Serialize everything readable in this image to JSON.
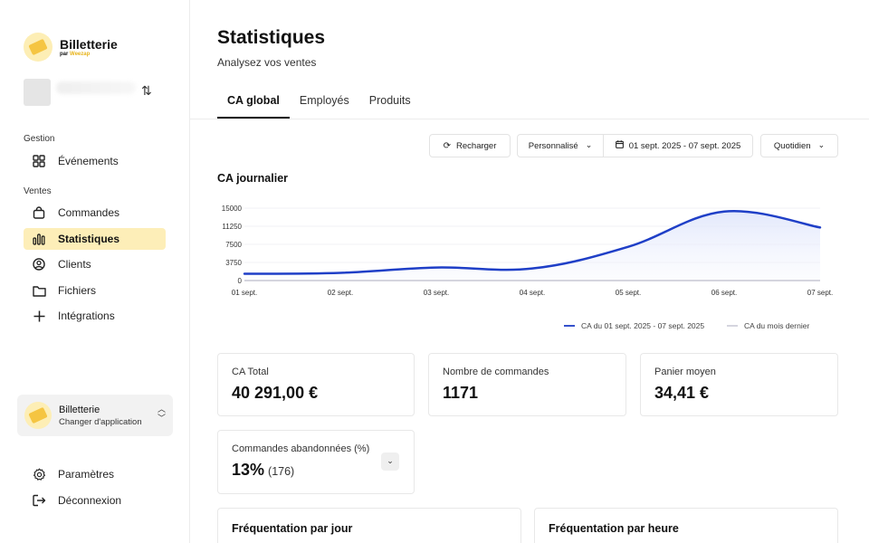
{
  "brand": {
    "name": "Billetterie",
    "by": "par",
    "company": "Weezap"
  },
  "sidebar": {
    "sections": [
      {
        "label": "Gestion"
      },
      {
        "label": "Ventes"
      }
    ],
    "items": [
      {
        "label": "Événements",
        "icon": "grid-icon"
      },
      {
        "label": "Commandes",
        "icon": "shopping-bag-icon"
      },
      {
        "label": "Statistiques",
        "icon": "bar-chart-icon",
        "active": true
      },
      {
        "label": "Clients",
        "icon": "user-circle-icon"
      },
      {
        "label": "Fichiers",
        "icon": "folder-icon"
      },
      {
        "label": "Intégrations",
        "icon": "plus-icon"
      }
    ],
    "app_switcher": {
      "title": "Billetterie",
      "subtitle": "Changer d'application"
    },
    "footer": [
      {
        "label": "Paramètres",
        "icon": "gear-icon"
      },
      {
        "label": "Déconnexion",
        "icon": "logout-icon"
      }
    ]
  },
  "page": {
    "title": "Statistiques",
    "subtitle": "Analysez vos ventes"
  },
  "tabs": [
    {
      "label": "CA global",
      "active": true
    },
    {
      "label": "Employés"
    },
    {
      "label": "Produits"
    }
  ],
  "toolbar": {
    "reload": "Recharger",
    "period": "Personnalisé",
    "date_range": "01 sept. 2025 - 07 sept. 2025",
    "granularity": "Quotidien"
  },
  "chart_data": {
    "type": "area",
    "title": "CA journalier",
    "categories": [
      "01 sept.",
      "02 sept.",
      "03 sept.",
      "04 sept.",
      "05 sept.",
      "06 sept.",
      "07 sept."
    ],
    "y_ticks": [
      15000,
      11250,
      7500,
      3750,
      0
    ],
    "ylim": [
      0,
      15000
    ],
    "grid": true,
    "legend": "bottom-right",
    "series": [
      {
        "name": "CA du 01 sept. 2025 - 07 sept. 2025",
        "color": "#1f3fc7",
        "values": [
          1400,
          1600,
          2700,
          2500,
          7000,
          14300,
          11000
        ]
      },
      {
        "name": "CA du mois dernier",
        "color": "#c7c7d4",
        "values": [
          0,
          0,
          0,
          0,
          0,
          0,
          0
        ]
      }
    ]
  },
  "kpis": [
    {
      "label": "CA Total",
      "value": "40 291,00 €"
    },
    {
      "label": "Nombre de commandes",
      "value": "1171"
    },
    {
      "label": "Panier moyen",
      "value": "34,41 €"
    }
  ],
  "abandoned": {
    "label": "Commandes abandonnées (%)",
    "value": "13%",
    "detail": "(176)"
  },
  "panels": [
    {
      "title": "Fréquentation par jour"
    },
    {
      "title": "Fréquentation par heure"
    }
  ],
  "colors": {
    "accent": "#f5c542",
    "active_bg": "#fdeeb8",
    "line": "#1f3fc7"
  }
}
